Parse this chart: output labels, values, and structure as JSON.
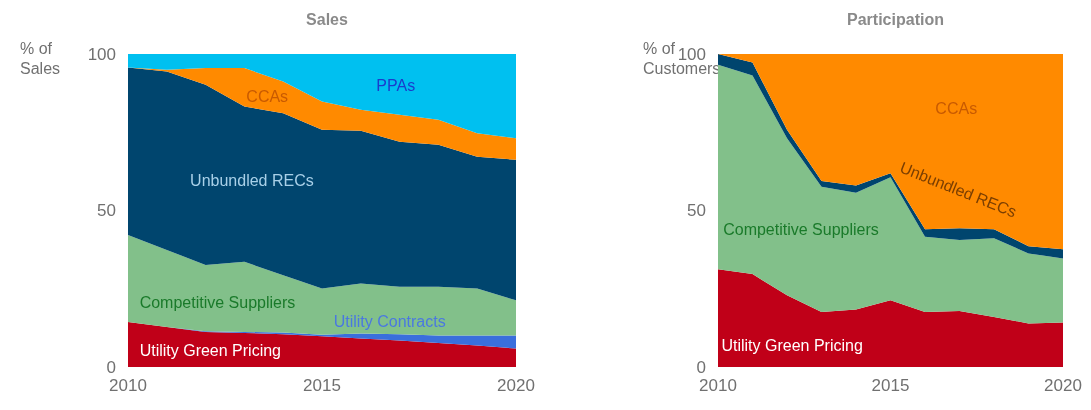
{
  "chart_data": [
    {
      "type": "area",
      "title": "Sales",
      "ylabel": "% of Sales",
      "stacked": true,
      "x": [
        2010,
        2011,
        2012,
        2013,
        2014,
        2015,
        2016,
        2017,
        2018,
        2019,
        2020
      ],
      "xlim": [
        2010,
        2020
      ],
      "xticks": [
        2010,
        2015,
        2020
      ],
      "ylim": [
        0,
        100
      ],
      "yticks": [
        0,
        50,
        100
      ],
      "grid": false,
      "legend": false,
      "series": [
        {
          "name": "Utility Green Pricing",
          "color": "#c00018",
          "values": [
            14.4,
            12.8,
            11.2,
            10.9,
            10.5,
            9.8,
            9.1,
            8.5,
            7.7,
            6.9,
            5.9
          ]
        },
        {
          "name": "Utility Contracts",
          "color": "#3a6fdc",
          "values": [
            0,
            0,
            0.2,
            0.3,
            0.5,
            0.5,
            1.6,
            2.0,
            2.4,
            3.2,
            4.2
          ]
        },
        {
          "name": "Competitive Suppliers",
          "color": "#82c08a",
          "values": [
            27.8,
            24.6,
            21.2,
            22.4,
            18.3,
            14.8,
            16.0,
            15.1,
            15.5,
            15.0,
            11.2
          ]
        },
        {
          "name": "Unbundled RECs",
          "color": "#00456e",
          "values": [
            53.5,
            57.0,
            57.6,
            49.6,
            51.8,
            50.7,
            48.8,
            46.4,
            45.4,
            42.1,
            44.9
          ]
        },
        {
          "name": "CCAs",
          "color": "#ff8a00",
          "values": [
            0,
            0.6,
            5.3,
            12.3,
            10.1,
            9.0,
            6.7,
            8.6,
            8.0,
            7.5,
            6.9
          ]
        },
        {
          "name": "PPAs",
          "color": "#00c0f0",
          "values": [
            4.3,
            5.0,
            4.5,
            4.5,
            8.8,
            15.2,
            17.8,
            19.4,
            21.0,
            25.3,
            26.9
          ]
        }
      ]
    },
    {
      "type": "area",
      "title": "Participation",
      "ylabel": "% of Customers",
      "stacked": true,
      "x": [
        2010,
        2011,
        2012,
        2013,
        2014,
        2015,
        2016,
        2017,
        2018,
        2019,
        2020
      ],
      "xlim": [
        2010,
        2020
      ],
      "xticks": [
        2010,
        2015,
        2020
      ],
      "ylim": [
        0,
        100
      ],
      "yticks": [
        0,
        50,
        100
      ],
      "grid": false,
      "legend": false,
      "series": [
        {
          "name": "Utility Green Pricing",
          "color": "#c00018",
          "values": [
            31.2,
            29.7,
            22.9,
            17.6,
            18.4,
            21.3,
            17.6,
            17.9,
            16.0,
            13.9,
            14.2
          ]
        },
        {
          "name": "Competitive Suppliers",
          "color": "#82c08a",
          "values": [
            65.4,
            63.4,
            50.2,
            40.0,
            37.3,
            39.3,
            24.0,
            22.7,
            25.1,
            22.4,
            20.5
          ]
        },
        {
          "name": "Unbundled RECs",
          "color": "#00456e",
          "values": [
            3.4,
            4.2,
            2.7,
            1.8,
            2.3,
            1.3,
            2.4,
            3.7,
            2.9,
            2.3,
            2.9
          ]
        },
        {
          "name": "CCAs",
          "color": "#ff8a00",
          "values": [
            0,
            2.7,
            24.2,
            40.6,
            42.0,
            38.1,
            56.0,
            55.7,
            56.0,
            61.4,
            62.4
          ]
        }
      ]
    }
  ]
}
